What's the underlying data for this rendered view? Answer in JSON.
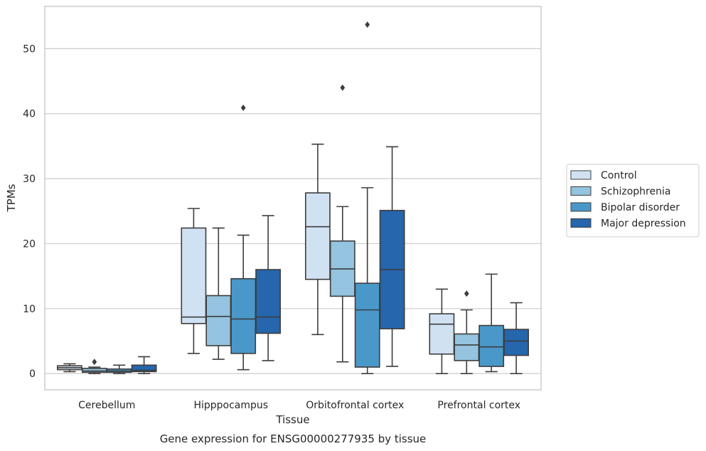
{
  "chart_data": {
    "type": "box",
    "title": "",
    "xlabel": "Tissue",
    "ylabel": "TPMs",
    "caption": "Gene expression for ENSG00000277935 by tissue",
    "ylim": [
      -2.5,
      56.5
    ],
    "yticks": [
      0,
      10,
      20,
      30,
      40,
      50
    ],
    "grid": "horizontal",
    "legend_position": "right",
    "categories": [
      "Cerebellum",
      "Hipppocampus",
      "Orbitofrontal cortex",
      "Prefrontal cortex"
    ],
    "series": [
      {
        "name": "Control",
        "color": "#d0e1f2",
        "boxes": [
          {
            "min": 0.3,
            "q1": 0.6,
            "median": 0.9,
            "q3": 1.2,
            "max": 1.5,
            "outliers": []
          },
          {
            "min": 3.1,
            "q1": 7.7,
            "median": 8.7,
            "q3": 22.4,
            "max": 25.4,
            "outliers": []
          },
          {
            "min": 6.0,
            "q1": 14.5,
            "median": 22.6,
            "q3": 27.8,
            "max": 35.3,
            "outliers": []
          },
          {
            "min": 0.0,
            "q1": 3.0,
            "median": 7.6,
            "q3": 9.2,
            "max": 13.0,
            "outliers": []
          }
        ]
      },
      {
        "name": "Schizophrenia",
        "color": "#94c4df",
        "boxes": [
          {
            "min": 0.0,
            "q1": 0.2,
            "median": 0.4,
            "q3": 0.8,
            "max": 1.0,
            "outliers": [
              1.8
            ]
          },
          {
            "min": 2.2,
            "q1": 4.3,
            "median": 8.8,
            "q3": 12.0,
            "max": 22.4,
            "outliers": []
          },
          {
            "min": 1.8,
            "q1": 11.9,
            "median": 16.1,
            "q3": 20.4,
            "max": 25.7,
            "outliers": [
              44.0
            ]
          },
          {
            "min": 0.0,
            "q1": 2.0,
            "median": 4.4,
            "q3": 6.1,
            "max": 9.8,
            "outliers": [
              12.3
            ]
          }
        ]
      },
      {
        "name": "Bipolar disorder",
        "color": "#4a98c9",
        "boxes": [
          {
            "min": 0.0,
            "q1": 0.2,
            "median": 0.4,
            "q3": 0.7,
            "max": 1.3,
            "outliers": []
          },
          {
            "min": 0.6,
            "q1": 3.1,
            "median": 8.4,
            "q3": 14.6,
            "max": 21.3,
            "outliers": [
              40.9
            ]
          },
          {
            "min": 0.0,
            "q1": 1.0,
            "median": 9.8,
            "q3": 13.9,
            "max": 28.6,
            "outliers": [
              53.7
            ]
          },
          {
            "min": 0.3,
            "q1": 1.1,
            "median": 4.1,
            "q3": 7.4,
            "max": 15.3,
            "outliers": []
          }
        ]
      },
      {
        "name": "Major depression",
        "color": "#2566ad",
        "boxes": [
          {
            "min": 0.0,
            "q1": 0.3,
            "median": 0.5,
            "q3": 1.3,
            "max": 2.6,
            "outliers": []
          },
          {
            "min": 2.0,
            "q1": 6.2,
            "median": 8.7,
            "q3": 16.0,
            "max": 24.3,
            "outliers": []
          },
          {
            "min": 1.1,
            "q1": 6.9,
            "median": 16.0,
            "q3": 25.1,
            "max": 34.9,
            "outliers": []
          },
          {
            "min": 0.0,
            "q1": 2.8,
            "median": 5.0,
            "q3": 6.8,
            "max": 10.9,
            "outliers": []
          }
        ]
      }
    ]
  }
}
